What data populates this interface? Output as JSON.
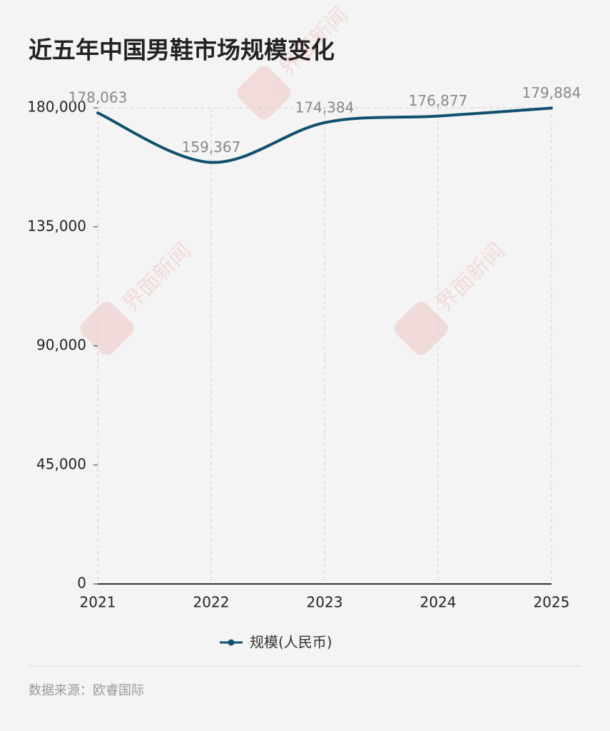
{
  "chart_data": {
    "type": "line",
    "title": "近五年中国男鞋市场规模变化",
    "categories": [
      "2021",
      "2022",
      "2023",
      "2024",
      "2025"
    ],
    "series": [
      {
        "name": "规模(人民币)",
        "color": "#10506f",
        "values": [
          178063,
          159367,
          174384,
          176877,
          179884
        ],
        "value_labels": [
          "178,063",
          "159,367",
          "174,384",
          "176,877",
          "179,884"
        ]
      }
    ],
    "ylim": [
      0,
      180000
    ],
    "yticks": [
      0,
      {
        "value": 45000,
        "label": "45,000"
      },
      {
        "value": 90000,
        "label": "90,000"
      },
      {
        "value": 135000,
        "label": "135,000"
      },
      {
        "value": 180000,
        "label": "180,000"
      }
    ],
    "grid": "x",
    "smooth": true,
    "legend": "bottom",
    "source": "数据来源：欧睿国际",
    "watermark": "界面新闻"
  }
}
